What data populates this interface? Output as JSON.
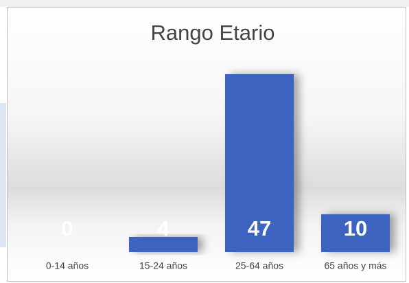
{
  "chart_data": {
    "type": "bar",
    "title": "Rango Etario",
    "categories": [
      "0-14 años",
      "15-24 años",
      "25-64 años",
      "65 años y más"
    ],
    "values": [
      0,
      4,
      47,
      10
    ],
    "color": "#3d64c0"
  }
}
